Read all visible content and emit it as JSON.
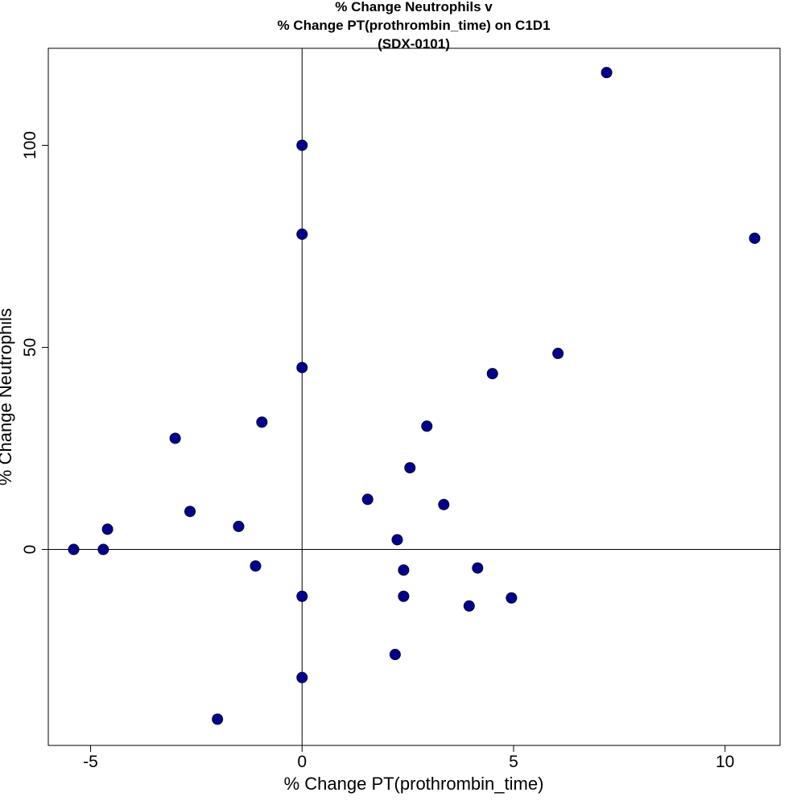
{
  "chart_data": {
    "type": "scatter",
    "title_lines": [
      "% Change Neutrophils v",
      "% Change PT(prothrombin_time) on C1D1",
      "(SDX-0101)"
    ],
    "xlabel": "% Change PT(prothrombin_time)",
    "ylabel": "% Change Neutrophils",
    "xlim": [
      -6.0,
      11.3
    ],
    "ylim": [
      -48.5,
      124
    ],
    "x_ticks": [
      -5,
      0,
      5,
      10
    ],
    "y_ticks": [
      0,
      50,
      100
    ],
    "reference_lines": {
      "x": 0,
      "y": 0
    },
    "grid": false,
    "marker_color": "#00008B",
    "points": [
      {
        "x": 7.2,
        "y": 118
      },
      {
        "x": 0,
        "y": 100
      },
      {
        "x": 0,
        "y": 78
      },
      {
        "x": 10.7,
        "y": 77
      },
      {
        "x": 6.05,
        "y": 48.5
      },
      {
        "x": 0,
        "y": 45
      },
      {
        "x": 4.5,
        "y": 43.5
      },
      {
        "x": -0.95,
        "y": 31.5
      },
      {
        "x": 2.95,
        "y": 30.5
      },
      {
        "x": -3.0,
        "y": 27.5
      },
      {
        "x": 2.55,
        "y": 20.2
      },
      {
        "x": 1.55,
        "y": 12.4
      },
      {
        "x": 3.35,
        "y": 11.1
      },
      {
        "x": -2.65,
        "y": 9.4
      },
      {
        "x": -1.5,
        "y": 5.7
      },
      {
        "x": -4.6,
        "y": 5
      },
      {
        "x": 2.25,
        "y": 2.4
      },
      {
        "x": -5.4,
        "y": 0
      },
      {
        "x": -4.7,
        "y": 0
      },
      {
        "x": -1.1,
        "y": -4.1
      },
      {
        "x": 4.15,
        "y": -4.6
      },
      {
        "x": 2.4,
        "y": -5.1
      },
      {
        "x": 0,
        "y": -11.6
      },
      {
        "x": 2.4,
        "y": -11.6
      },
      {
        "x": 4.95,
        "y": -12
      },
      {
        "x": 3.95,
        "y": -14
      },
      {
        "x": 2.2,
        "y": -26
      },
      {
        "x": 0,
        "y": -31.7
      },
      {
        "x": -2.0,
        "y": -42
      }
    ]
  }
}
